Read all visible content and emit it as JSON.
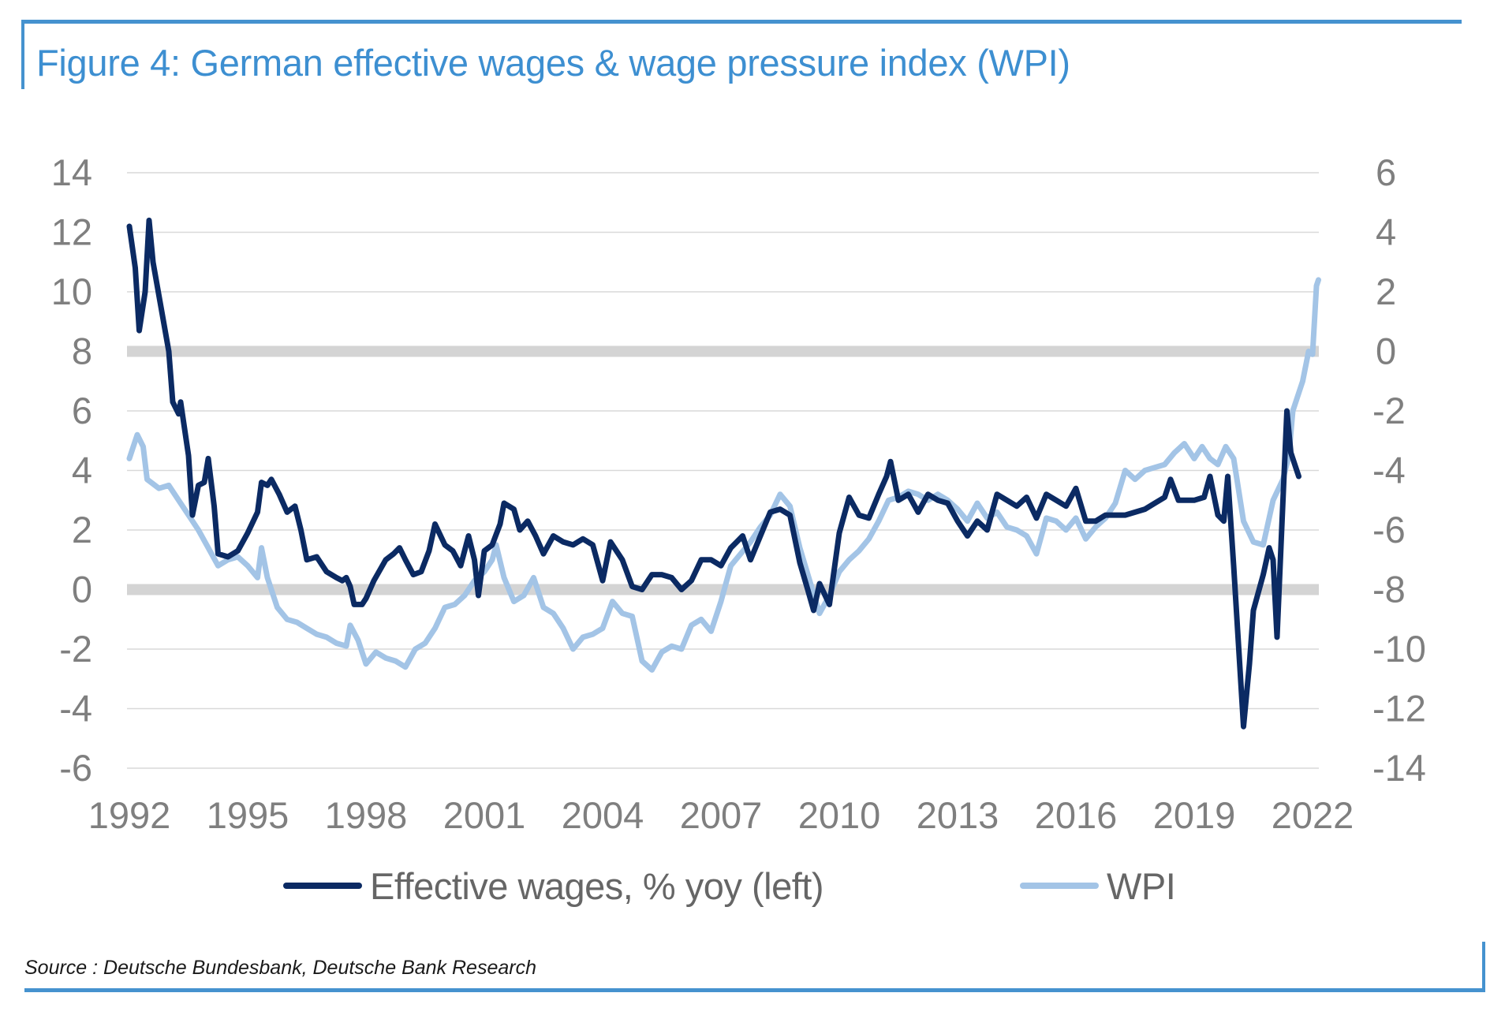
{
  "title": "Figure 4: German effective wages & wage pressure index (WPI)",
  "source": "Source : Deutsche Bundesbank, Deutsche Bank Research",
  "colors": {
    "frame": "#4592cf",
    "title": "#3d8fd1",
    "effective_wages": "#0b2a63",
    "wpi": "#a3c4e6",
    "gridline": "#d9d9d9",
    "highlight_band": "#d4d4d4",
    "tick_text": "#7f7f7f"
  },
  "legend": [
    {
      "label": "Effective wages, % yoy (left)",
      "color": "#0b2a63"
    },
    {
      "label": "WPI",
      "color": "#a3c4e6"
    }
  ],
  "chart_data": {
    "type": "line",
    "title": "Figure 4: German effective wages & wage pressure index (WPI)",
    "xlabel": "",
    "ylabel_left": "",
    "ylabel_right": "",
    "x_ticks": [
      "1992",
      "1995",
      "1998",
      "2001",
      "2004",
      "2007",
      "2010",
      "2013",
      "2016",
      "2019",
      "2022"
    ],
    "x_range": [
      1992,
      2022.2
    ],
    "y_left": {
      "range": [
        -6,
        14
      ],
      "ticks": [
        "14",
        "12",
        "10",
        "8",
        "6",
        "4",
        "2",
        "0",
        "-2",
        "-4",
        "-6"
      ]
    },
    "y_right": {
      "range": [
        -14,
        6
      ],
      "ticks": [
        "6",
        "4",
        "2",
        "0",
        "-2",
        "-4",
        "-6",
        "-8",
        "-10",
        "-12",
        "-14"
      ]
    },
    "highlight_lines_left": [
      8,
      0
    ],
    "grid": true,
    "legend_position": "bottom",
    "series": [
      {
        "name": "Effective wages, % yoy (left)",
        "axis": "left",
        "x": [
          1992.0,
          1992.15,
          1992.25,
          1992.4,
          1992.5,
          1992.6,
          1992.8,
          1993.0,
          1993.1,
          1993.25,
          1993.3,
          1993.5,
          1993.6,
          1993.75,
          1993.9,
          1994.0,
          1994.15,
          1994.25,
          1994.5,
          1994.75,
          1995.0,
          1995.25,
          1995.35,
          1995.5,
          1995.6,
          1995.8,
          1996.0,
          1996.2,
          1996.35,
          1996.5,
          1996.75,
          1997.0,
          1997.25,
          1997.4,
          1997.5,
          1997.6,
          1997.7,
          1997.9,
          1998.0,
          1998.2,
          1998.5,
          1998.7,
          1998.85,
          1999.0,
          1999.2,
          1999.4,
          1999.6,
          1999.75,
          2000.0,
          2000.2,
          2000.4,
          2000.6,
          2000.75,
          2000.85,
          2001.0,
          2001.2,
          2001.4,
          2001.5,
          2001.75,
          2001.9,
          2002.1,
          2002.3,
          2002.5,
          2002.75,
          2003.0,
          2003.25,
          2003.5,
          2003.75,
          2004.0,
          2004.2,
          2004.5,
          2004.75,
          2005.0,
          2005.25,
          2005.5,
          2005.75,
          2006.0,
          2006.25,
          2006.5,
          2006.75,
          2007.0,
          2007.25,
          2007.4,
          2007.55,
          2007.75,
          2008.0,
          2008.25,
          2008.5,
          2008.75,
          2009.0,
          2009.2,
          2009.35,
          2009.5,
          2009.75,
          2010.0,
          2010.25,
          2010.5,
          2010.75,
          2011.0,
          2011.2,
          2011.3,
          2011.5,
          2011.75,
          2012.0,
          2012.25,
          2012.5,
          2012.75,
          2013.0,
          2013.25,
          2013.5,
          2013.75,
          2014.0,
          2014.25,
          2014.5,
          2014.75,
          2015.0,
          2015.25,
          2015.5,
          2015.75,
          2016.0,
          2016.25,
          2016.5,
          2016.75,
          2017.0,
          2017.25,
          2017.5,
          2017.75,
          2018.0,
          2018.25,
          2018.4,
          2018.6,
          2018.75,
          2019.0,
          2019.25,
          2019.4,
          2019.6,
          2019.75,
          2019.85,
          2020.0,
          2020.25,
          2020.4,
          2020.5,
          2020.75,
          2020.9,
          2021.0,
          2021.1,
          2021.25,
          2021.35,
          2021.45,
          2021.55,
          2021.65
        ],
        "values": [
          12.2,
          10.8,
          8.7,
          10.0,
          12.4,
          11.0,
          9.5,
          8.0,
          6.3,
          5.9,
          6.3,
          4.5,
          2.5,
          3.5,
          3.6,
          4.4,
          2.8,
          1.2,
          1.1,
          1.3,
          1.9,
          2.6,
          3.6,
          3.5,
          3.7,
          3.2,
          2.6,
          2.8,
          2.0,
          1.0,
          1.1,
          0.6,
          0.4,
          0.3,
          0.4,
          0.1,
          -0.5,
          -0.5,
          -0.3,
          0.3,
          1.0,
          1.2,
          1.4,
          1.0,
          0.5,
          0.6,
          1.3,
          2.2,
          1.5,
          1.3,
          0.8,
          1.8,
          1.0,
          -0.2,
          1.3,
          1.5,
          2.2,
          2.9,
          2.7,
          2.0,
          2.3,
          1.8,
          1.2,
          1.8,
          1.6,
          1.5,
          1.7,
          1.5,
          0.3,
          1.6,
          1.0,
          0.1,
          0.0,
          0.5,
          0.5,
          0.4,
          0.0,
          0.3,
          1.0,
          1.0,
          0.8,
          1.4,
          1.6,
          1.8,
          1.0,
          1.8,
          2.6,
          2.7,
          2.5,
          0.9,
          0.0,
          -0.7,
          0.2,
          -0.5,
          1.9,
          3.1,
          2.5,
          2.4,
          3.2,
          3.8,
          4.3,
          3.0,
          3.2,
          2.6,
          3.2,
          3.0,
          2.9,
          2.3,
          1.8,
          2.3,
          2.0,
          3.2,
          3.0,
          2.8,
          3.1,
          2.4,
          3.2,
          3.0,
          2.8,
          3.4,
          2.3,
          2.3,
          2.5,
          2.5,
          2.5,
          2.6,
          2.7,
          2.9,
          3.1,
          3.7,
          3.0,
          3.0,
          3.0,
          3.1,
          3.8,
          2.5,
          2.3,
          3.8,
          0.8,
          -4.6,
          -2.5,
          -0.7,
          0.5,
          1.4,
          1.0,
          -1.6,
          3.0,
          6.0,
          4.6,
          4.2,
          3.8
        ]
      },
      {
        "name": "WPI",
        "axis": "right",
        "x": [
          1992.0,
          1992.2,
          1992.35,
          1992.45,
          1992.75,
          1993.0,
          1993.25,
          1993.5,
          1993.75,
          1994.0,
          1994.25,
          1994.5,
          1994.75,
          1995.0,
          1995.25,
          1995.35,
          1995.5,
          1995.75,
          1996.0,
          1996.25,
          1996.5,
          1996.75,
          1997.0,
          1997.25,
          1997.5,
          1997.6,
          1997.8,
          1998.0,
          1998.25,
          1998.5,
          1998.75,
          1999.0,
          1999.25,
          1999.5,
          1999.75,
          2000.0,
          2000.25,
          2000.5,
          2000.75,
          2001.0,
          2001.2,
          2001.3,
          2001.5,
          2001.75,
          2002.0,
          2002.25,
          2002.5,
          2002.75,
          2003.0,
          2003.25,
          2003.5,
          2003.75,
          2004.0,
          2004.25,
          2004.5,
          2004.75,
          2005.0,
          2005.25,
          2005.5,
          2005.75,
          2006.0,
          2006.25,
          2006.5,
          2006.75,
          2007.0,
          2007.25,
          2007.5,
          2007.75,
          2008.0,
          2008.25,
          2008.5,
          2008.75,
          2009.0,
          2009.25,
          2009.5,
          2009.75,
          2010.0,
          2010.25,
          2010.5,
          2010.75,
          2011.0,
          2011.25,
          2011.5,
          2011.75,
          2012.0,
          2012.25,
          2012.5,
          2012.75,
          2013.0,
          2013.25,
          2013.5,
          2013.75,
          2014.0,
          2014.25,
          2014.5,
          2014.75,
          2015.0,
          2015.25,
          2015.5,
          2015.75,
          2016.0,
          2016.25,
          2016.5,
          2016.75,
          2017.0,
          2017.25,
          2017.5,
          2017.75,
          2018.0,
          2018.25,
          2018.5,
          2018.75,
          2019.0,
          2019.2,
          2019.4,
          2019.6,
          2019.8,
          2020.0,
          2020.25,
          2020.5,
          2020.75,
          2021.0,
          2021.25,
          2021.4,
          2021.5,
          2021.75,
          2021.9,
          2022.0,
          2022.1,
          2022.15
        ],
        "values": [
          -3.6,
          -2.8,
          -3.2,
          -4.3,
          -4.6,
          -4.5,
          -5.0,
          -5.5,
          -6.0,
          -6.6,
          -7.2,
          -7.0,
          -6.9,
          -7.2,
          -7.6,
          -6.6,
          -7.6,
          -8.6,
          -9.0,
          -9.1,
          -9.3,
          -9.5,
          -9.6,
          -9.8,
          -9.9,
          -9.2,
          -9.7,
          -10.5,
          -10.1,
          -10.3,
          -10.4,
          -10.6,
          -10.0,
          -9.8,
          -9.3,
          -8.6,
          -8.5,
          -8.2,
          -7.7,
          -7.4,
          -7.0,
          -6.5,
          -7.6,
          -8.4,
          -8.2,
          -7.6,
          -8.6,
          -8.8,
          -9.3,
          -10.0,
          -9.6,
          -9.5,
          -9.3,
          -8.4,
          -8.8,
          -8.9,
          -10.4,
          -10.7,
          -10.1,
          -9.9,
          -10.0,
          -9.2,
          -9.0,
          -9.4,
          -8.4,
          -7.2,
          -6.8,
          -6.4,
          -5.9,
          -5.5,
          -4.8,
          -5.2,
          -6.6,
          -7.7,
          -8.8,
          -8.2,
          -7.4,
          -7.0,
          -6.7,
          -6.3,
          -5.7,
          -5.0,
          -4.9,
          -4.7,
          -4.8,
          -5.0,
          -4.8,
          -5.0,
          -5.3,
          -5.7,
          -5.1,
          -5.6,
          -5.4,
          -5.9,
          -6.0,
          -6.2,
          -6.8,
          -5.6,
          -5.7,
          -6.0,
          -5.6,
          -6.3,
          -5.9,
          -5.6,
          -5.1,
          -4.0,
          -4.3,
          -4.0,
          -3.9,
          -3.8,
          -3.4,
          -3.1,
          -3.6,
          -3.2,
          -3.6,
          -3.8,
          -3.2,
          -3.6,
          -5.7,
          -6.4,
          -6.5,
          -5.0,
          -4.3,
          -3.5,
          -2.0,
          -1.0,
          0.0,
          -0.1,
          2.2,
          2.4
        ]
      }
    ]
  }
}
